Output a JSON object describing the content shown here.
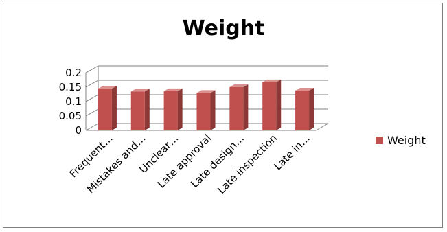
{
  "chart_data": {
    "type": "bar",
    "title": "Weight",
    "categories": [
      "Frequent…",
      "Mistakes and…",
      "Unclear…",
      "Late approval",
      "Late design…",
      "Late inspection",
      "Late in…"
    ],
    "series": [
      {
        "name": "Weight",
        "values": [
          0.145,
          0.135,
          0.136,
          0.13,
          0.15,
          0.167,
          0.138
        ]
      }
    ],
    "xlabel": "",
    "ylabel": "",
    "ylim": [
      0,
      0.2
    ],
    "yticks": [
      "0",
      "0.05",
      "0.1",
      "0.15",
      "0.2"
    ],
    "grid": true,
    "legend_position": "right",
    "colors": {
      "bar_front": "#c0504d",
      "bar_side": "#8c3836",
      "bar_top": "#d9908e",
      "axis": "#808080"
    }
  }
}
